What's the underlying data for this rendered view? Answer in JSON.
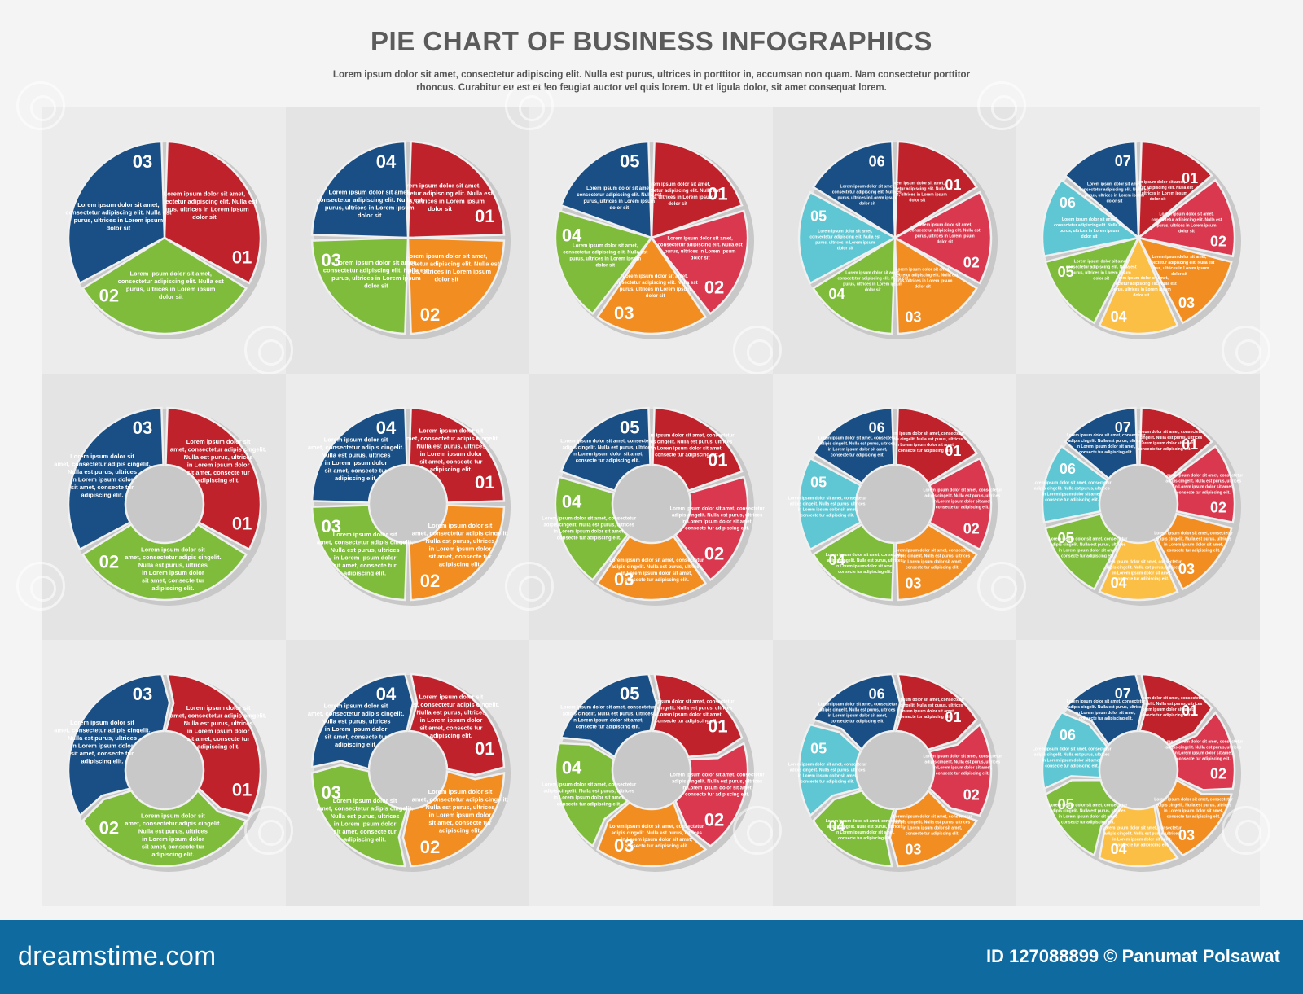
{
  "header": {
    "title": "PIE CHART OF BUSINESS INFOGRAPHICS",
    "subtitle": "Lorem ipsum dolor sit amet, consectetur adipiscing elit. Nulla est purus, ultrices in porttitor in, accumsan non quam. Nam consectetur porttitor rhoncus. Curabitur eu est et leo feugiat auctor vel quis lorem. Ut et ligula dolor, sit amet consequat lorem."
  },
  "colors": {
    "red": "#c0222c",
    "pink": "#d9384f",
    "orange": "#f28e21",
    "yellow": "#fbbf45",
    "green": "#7fbc3c",
    "teal": "#5ec7d3",
    "blue": "#1a4f85",
    "shadow": "#c8c8c8",
    "panel_light": "#ececec",
    "panel_dark": "#e4e4e4"
  },
  "segment_text": {
    "pie": "Lorem ipsum dolor sit amet, consectetur adipiscing elit. Nulla est purus, ultrices in Lorem ipsum dolor sit",
    "ring": "Lorem ipsum dolor sit amet, consectetur adipis cingelit. Nulla est purus, ultrices in Lorem ipsum dolor sit amet, consecte tur adipiscing elit."
  },
  "segment_color_sets": {
    "3": [
      "red",
      "green",
      "blue"
    ],
    "4": [
      "red",
      "orange",
      "green",
      "blue"
    ],
    "5": [
      "red",
      "pink",
      "orange",
      "green",
      "blue"
    ],
    "6": [
      "red",
      "pink",
      "orange",
      "green",
      "teal",
      "blue"
    ],
    "7": [
      "red",
      "pink",
      "orange",
      "yellow",
      "green",
      "teal",
      "blue"
    ]
  },
  "segment_labels": [
    "01",
    "02",
    "03",
    "04",
    "05",
    "06",
    "07"
  ],
  "rows": [
    {
      "style": "pie",
      "counts": [
        3,
        4,
        5,
        6,
        7
      ]
    },
    {
      "style": "donut",
      "counts": [
        3,
        4,
        5,
        6,
        7
      ]
    },
    {
      "style": "arrow",
      "counts": [
        3,
        4,
        5,
        6,
        7
      ]
    }
  ],
  "footer": {
    "logo": "dreamstime.com",
    "credit": "ID 127088899 © Panumat Polsawat"
  }
}
